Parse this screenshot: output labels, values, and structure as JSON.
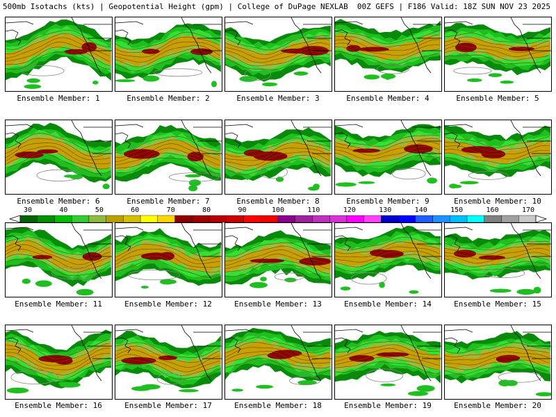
{
  "header": {
    "left": "500mb Isotachs (kts) | Geopotential Height (gpm) | College of DuPage NEXLAB",
    "right": "00Z GEFS | F186 Valid: 18Z SUN NOV 23 2025"
  },
  "member_prefix": "Ensemble Member:",
  "members": [
    {
      "label": "Ensemble Member: 1"
    },
    {
      "label": "Ensemble Member: 2"
    },
    {
      "label": "Ensemble Member: 3"
    },
    {
      "label": "Ensemble Member: 4"
    },
    {
      "label": "Ensemble Member: 5"
    },
    {
      "label": "Ensemble Member: 6"
    },
    {
      "label": "Ensemble Member: 7"
    },
    {
      "label": "Ensemble Member: 8"
    },
    {
      "label": "Ensemble Member: 9"
    },
    {
      "label": "Ensemble Member: 10"
    },
    {
      "label": "Ensemble Member: 11"
    },
    {
      "label": "Ensemble Member: 12"
    },
    {
      "label": "Ensemble Member: 13"
    },
    {
      "label": "Ensemble Member: 14"
    },
    {
      "label": "Ensemble Member: 15"
    },
    {
      "label": "Ensemble Member: 16"
    },
    {
      "label": "Ensemble Member: 17"
    },
    {
      "label": "Ensemble Member: 18"
    },
    {
      "label": "Ensemble Member: 19"
    },
    {
      "label": "Ensemble Member: 20"
    }
  ],
  "scale": {
    "labels": [
      "30",
      "40",
      "50",
      "60",
      "70",
      "80",
      "90",
      "100",
      "110",
      "120",
      "130",
      "140",
      "150",
      "160",
      "170"
    ],
    "colors": [
      "#006400",
      "#009000",
      "#00c000",
      "#32cd32",
      "#8fbc3f",
      "#b8a000",
      "#d4c000",
      "#ffff00",
      "#ffd700",
      "#8b0000",
      "#a00000",
      "#b40000",
      "#cc0000",
      "#ff0000",
      "#ee0000",
      "#8b008b",
      "#a020a0",
      "#c030c0",
      "#da30da",
      "#ff00ff",
      "#ff40ff",
      "#0000cd",
      "#0000ff",
      "#1e60ff",
      "#1e90ff",
      "#00bfff",
      "#00ffff",
      "#808080",
      "#a0a0a0",
      "#c8c8c8"
    ]
  },
  "colors": {
    "dark_green": "#0a8a0a",
    "mid_green": "#1fbf1f",
    "light_green": "#33e033",
    "olive": "#9bbb3a",
    "gold": "#c8a000",
    "maroon": "#8b0000"
  }
}
